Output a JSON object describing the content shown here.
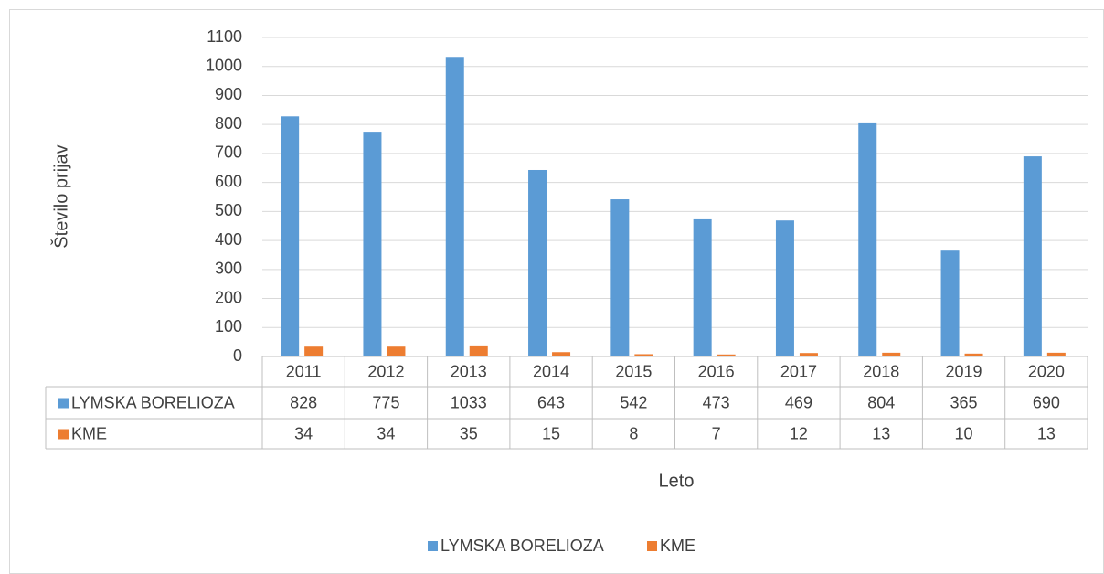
{
  "chart_data": {
    "type": "bar",
    "y_label": "Število prijav",
    "x_label": "Leto",
    "categories": [
      "2011",
      "2012",
      "2013",
      "2014",
      "2015",
      "2016",
      "2017",
      "2018",
      "2019",
      "2020"
    ],
    "series": [
      {
        "name": "LYMSKA BORELIOZA",
        "color": "#5b9bd5",
        "values": [
          828,
          775,
          1033,
          643,
          542,
          473,
          469,
          804,
          365,
          690
        ]
      },
      {
        "name": "KME",
        "color": "#ed7d31",
        "values": [
          34,
          34,
          35,
          15,
          8,
          7,
          12,
          13,
          10,
          13
        ]
      }
    ],
    "ylim": [
      0,
      1100
    ],
    "yticks": [
      0,
      100,
      200,
      300,
      400,
      500,
      600,
      700,
      800,
      900,
      1000,
      1100
    ],
    "grid": true,
    "legend": "bottom"
  }
}
